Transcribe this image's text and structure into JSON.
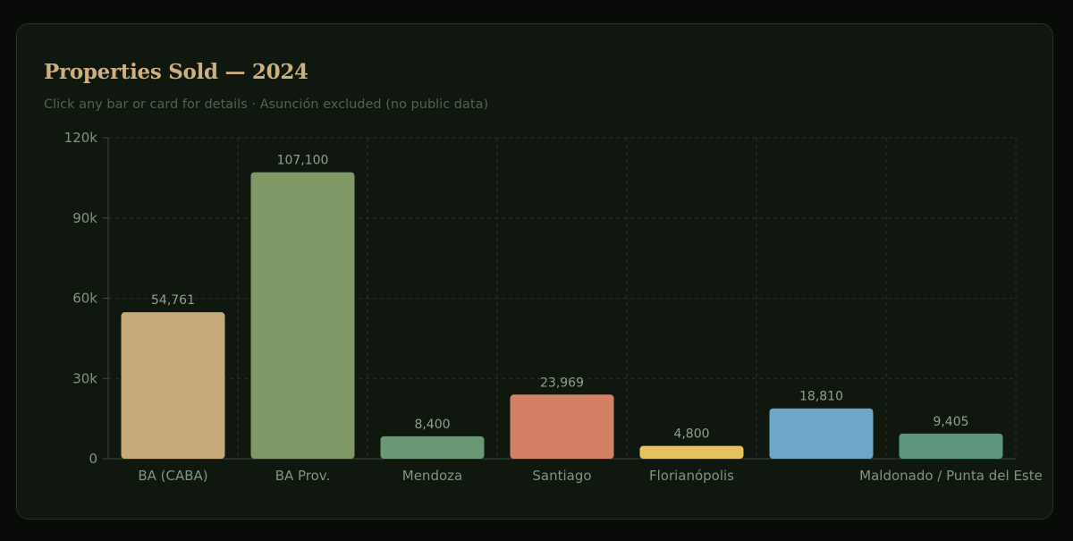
{
  "card": {
    "title": "Properties Sold — 2024",
    "subtitle": "Click any bar or card for details · Asunción excluded (no public data)"
  },
  "colors": {
    "page_background": "#080b07",
    "card_background": "#0f170f",
    "title": "#cdb07e",
    "axis_text": "#7f967f",
    "value_label": "#8fa28f",
    "grid": "#263426"
  },
  "chart_data": {
    "type": "bar",
    "title": "Properties Sold — 2024",
    "xlabel": "",
    "ylabel": "",
    "ylim": [
      0,
      120000
    ],
    "yticks": [
      0,
      30000,
      60000,
      90000,
      120000
    ],
    "ytick_labels": [
      "0",
      "30k",
      "60k",
      "90k",
      "120k"
    ],
    "grid": true,
    "legend": "none",
    "categories": [
      "BA (CABA)",
      "BA Prov.",
      "Mendoza",
      "Santiago",
      "Florianópolis",
      "",
      "Maldonado / Punta del Este"
    ],
    "values": [
      54761,
      107100,
      8400,
      23969,
      4800,
      18810,
      9405
    ],
    "value_labels": [
      "54,761",
      "107,100",
      "8,400",
      "23,969",
      "4,800",
      "18,810",
      "9,405"
    ],
    "colors": [
      "#c6ab78",
      "#809865",
      "#6a9875",
      "#d38065",
      "#e6c35d",
      "#6ea6c8",
      "#5f957d"
    ]
  }
}
